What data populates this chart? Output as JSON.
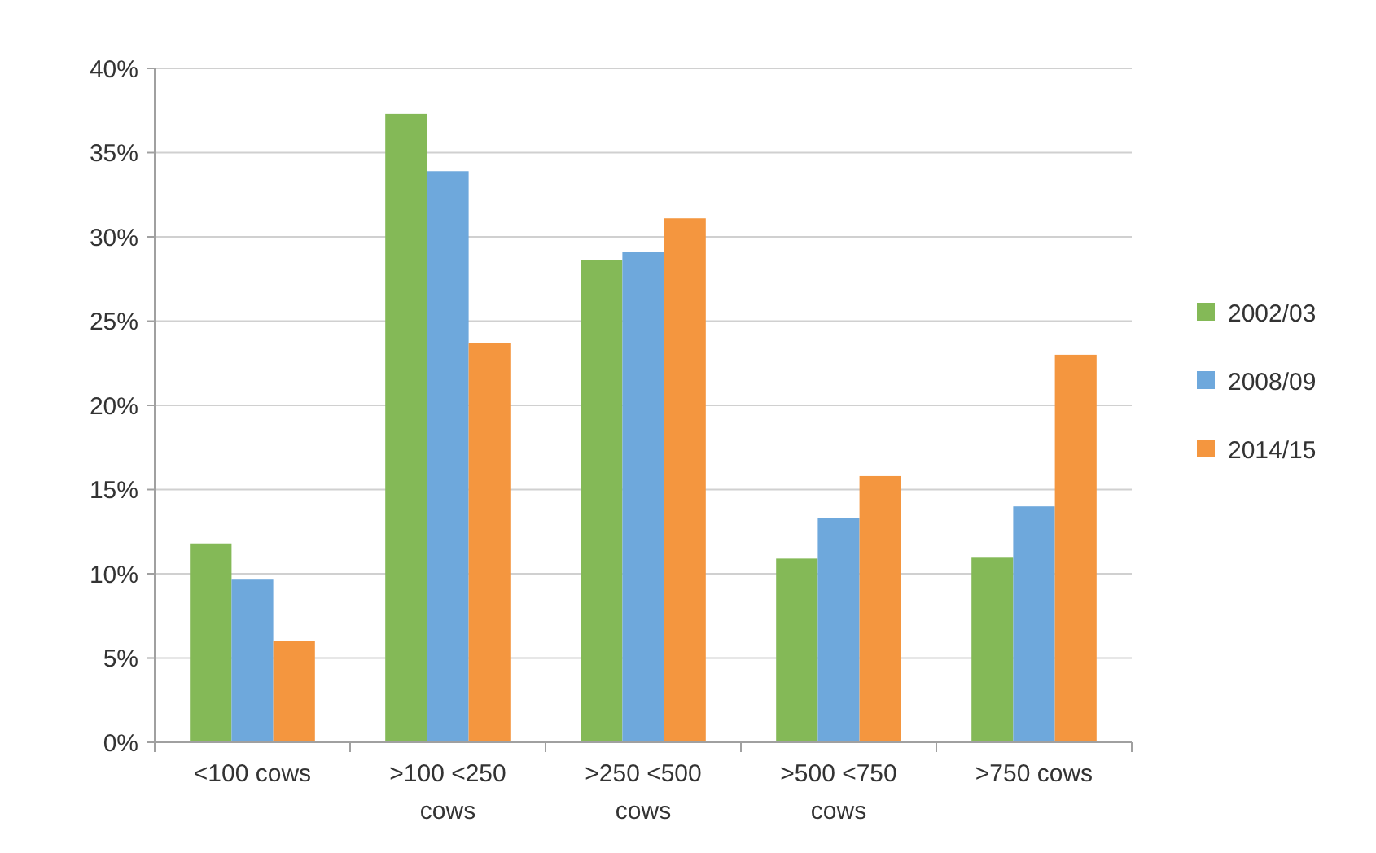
{
  "chart_data": {
    "type": "bar",
    "categories": [
      "<100 cows",
      ">100 <250 cows",
      ">250 <500 cows",
      ">500 <750 cows",
      ">750 cows"
    ],
    "series": [
      {
        "name": "2002/03",
        "color": "#84b957",
        "values": [
          11.8,
          37.3,
          28.6,
          10.9,
          11.0
        ]
      },
      {
        "name": "2008/09",
        "color": "#6ea8dc",
        "values": [
          9.7,
          33.9,
          29.1,
          13.3,
          14.0
        ]
      },
      {
        "name": "2014/15",
        "color": "#f4963f",
        "values": [
          6.0,
          23.7,
          31.1,
          15.8,
          23.0
        ]
      }
    ],
    "ylim": [
      0,
      40
    ],
    "yticks": [
      {
        "value": 0,
        "label": "0%"
      },
      {
        "value": 5,
        "label": "5%"
      },
      {
        "value": 10,
        "label": "10%"
      },
      {
        "value": 15,
        "label": "15%"
      },
      {
        "value": 20,
        "label": "20%"
      },
      {
        "value": 25,
        "label": "25%"
      },
      {
        "value": 30,
        "label": "30%"
      },
      {
        "value": 35,
        "label": "35%"
      },
      {
        "value": 40,
        "label": "40%"
      }
    ],
    "grid": "y",
    "legend": "right"
  }
}
